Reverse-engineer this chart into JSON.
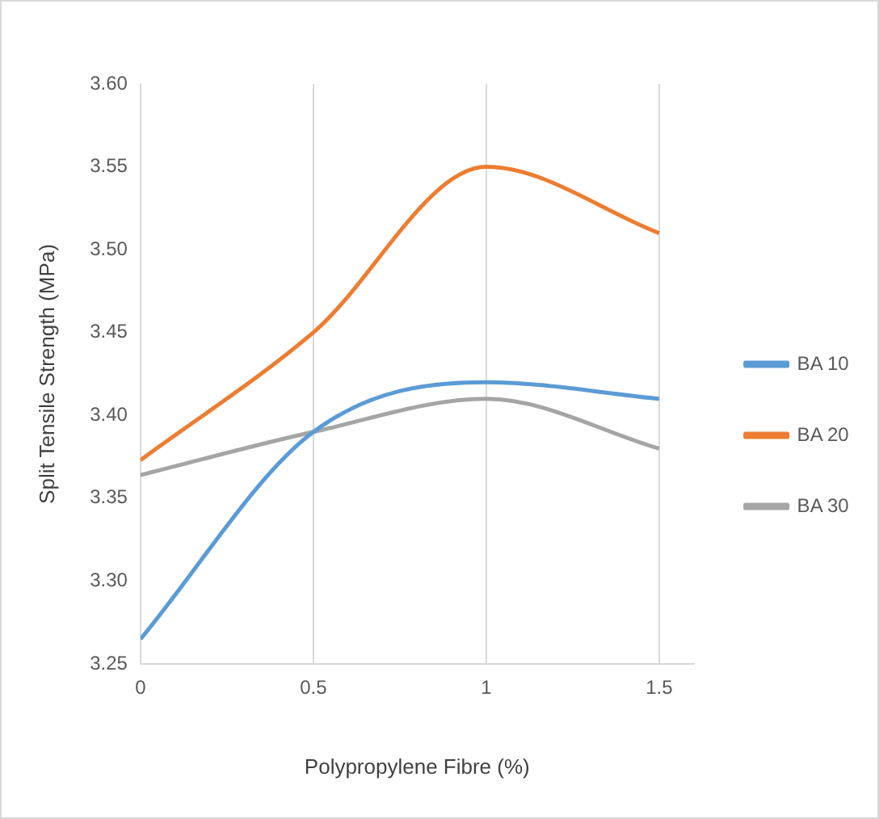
{
  "chart_data": {
    "type": "line",
    "xlabel": "Polypropylene Fibre (%)",
    "ylabel": "Split Tensile Strength (MPa)",
    "x": [
      0,
      0.5,
      1,
      1.5
    ],
    "series": [
      {
        "name": "BA 10",
        "color": "#5b9bd5",
        "values": [
          3.265,
          3.39,
          3.42,
          3.41
        ]
      },
      {
        "name": "BA 20",
        "color": "#ed7d31",
        "values": [
          3.373,
          3.45,
          3.55,
          3.51
        ]
      },
      {
        "name": "BA 30",
        "color": "#a5a5a5",
        "values": [
          3.364,
          3.39,
          3.41,
          3.38
        ]
      }
    ],
    "xlim": [
      0,
      1.6
    ],
    "xticks": [
      0,
      0.5,
      1,
      1.5
    ],
    "ylim": [
      3.25,
      3.6
    ],
    "yticks": [
      3.25,
      {
        "value": 3.3,
        "label": "3.30"
      },
      3.35,
      {
        "value": 3.4,
        "label": "3.40"
      },
      3.45,
      {
        "value": 3.5,
        "label": "3.50"
      },
      3.55,
      {
        "value": 3.6,
        "label": "3.60"
      }
    ],
    "grid": "x",
    "legend": "right",
    "marker": "none",
    "line_style": "solid"
  }
}
